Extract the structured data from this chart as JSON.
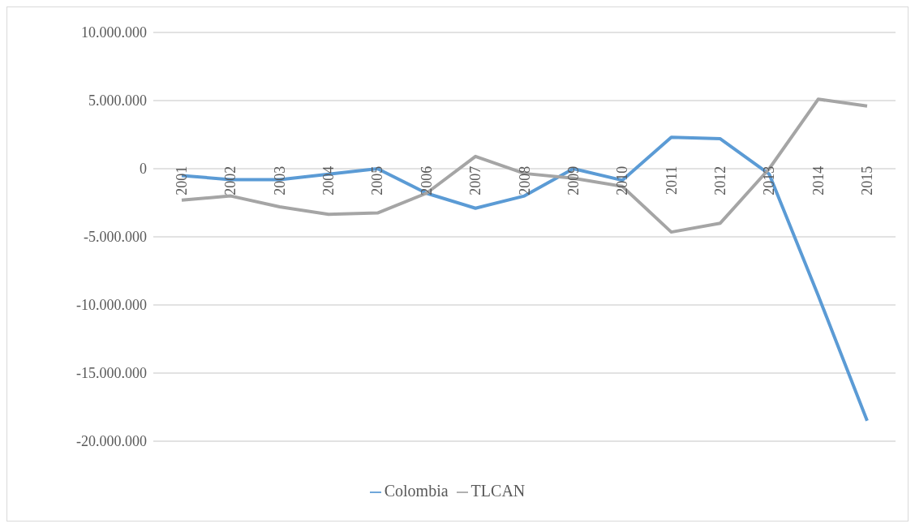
{
  "chart_data": {
    "type": "line",
    "categories": [
      "2001",
      "2002",
      "2003",
      "2004",
      "2005",
      "2006",
      "2007",
      "2008",
      "2009",
      "2010",
      "2011",
      "2012",
      "2013",
      "2014",
      "2015"
    ],
    "series": [
      {
        "name": "Colombia",
        "color": "#5b9bd5",
        "values": [
          -500000,
          -800000,
          -800000,
          -400000,
          0,
          -1800000,
          -2900000,
          -2000000,
          0,
          -850000,
          2300000,
          2200000,
          -400000,
          -9300000,
          -18500000
        ]
      },
      {
        "name": "TLCAN",
        "color": "#a5a5a5",
        "values": [
          -2300000,
          -2000000,
          -2800000,
          -3350000,
          -3250000,
          -1800000,
          900000,
          -350000,
          -700000,
          -1300000,
          -4650000,
          -4000000,
          0,
          5100000,
          4600000
        ]
      }
    ],
    "ylim": [
      -20000000,
      10000000
    ],
    "yticks": [
      {
        "value": -20000000,
        "label": "-20.000.000"
      },
      {
        "value": -15000000,
        "label": "-15.000.000"
      },
      {
        "value": -10000000,
        "label": "-10.000.000"
      },
      {
        "value": -5000000,
        "label": "-5.000.000"
      },
      0,
      {
        "value": 5000000,
        "label": "5.000.000"
      },
      {
        "value": 10000000,
        "label": "10.000.000"
      }
    ],
    "grid": "y",
    "legend": "bottom",
    "marker": "none",
    "line_style": "solid"
  }
}
